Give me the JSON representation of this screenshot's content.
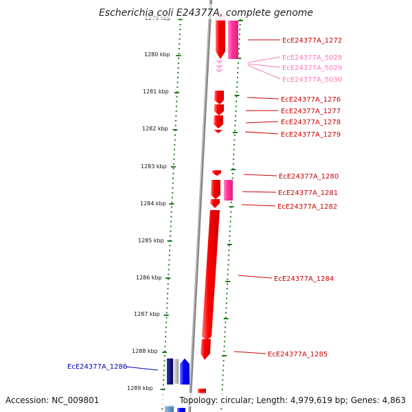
{
  "header": {
    "title": "Escherichia coli E24377A, complete genome"
  },
  "footer": {
    "accession": "Accession: NC_009801",
    "topology": "Topology: circular; Length: 4,979,619 bp; Genes: 4,863"
  },
  "colors": {
    "forward_gene": "#ff0000",
    "pseudo_gene": "#ff3399",
    "rna_gene": "#ff99cc",
    "reverse_gene": "#0000ff",
    "reverse_dark": "#000066",
    "backbone": "#888888",
    "tick": "#1a7a1a",
    "label_red": "#cc0000",
    "label_pink": "#ff77bb",
    "label_blue": "#0000aa"
  },
  "scale": {
    "unit": "kbp",
    "ticks": [
      {
        "value": 1279,
        "label": "1279 kbp"
      },
      {
        "value": 1280,
        "label": "1280 kbp"
      },
      {
        "value": 1281,
        "label": "1281 kbp"
      },
      {
        "value": 1282,
        "label": "1282 kbp"
      },
      {
        "value": 1283,
        "label": "1283 kbp"
      },
      {
        "value": 1284,
        "label": "1284 kbp"
      },
      {
        "value": 1285,
        "label": "1285 kbp"
      },
      {
        "value": 1286,
        "label": "1286 kbp"
      },
      {
        "value": 1287,
        "label": "1287 kbp"
      },
      {
        "value": 1288,
        "label": "1288 kbp"
      },
      {
        "value": 1289,
        "label": "1289 kbp"
      }
    ]
  },
  "genes": [
    {
      "label": "EcE24377A_1272",
      "kind": "forward"
    },
    {
      "label": "EcE24377A_5028",
      "kind": "rna"
    },
    {
      "label": "EcE24377A_5029",
      "kind": "rna"
    },
    {
      "label": "EcE24377A_5030",
      "kind": "rna"
    },
    {
      "label": "EcE24377A_1276",
      "kind": "forward"
    },
    {
      "label": "EcE24377A_1277",
      "kind": "forward"
    },
    {
      "label": "EcE24377A_1278",
      "kind": "forward"
    },
    {
      "label": "EcE24377A_1279",
      "kind": "forward"
    },
    {
      "label": "EcE24377A_1280",
      "kind": "forward"
    },
    {
      "label": "EcE24377A_1281",
      "kind": "forward"
    },
    {
      "label": "EcE24377A_1282",
      "kind": "forward"
    },
    {
      "label": "EcE24377A_1284",
      "kind": "forward"
    },
    {
      "label": "EcE24377A_1285",
      "kind": "forward"
    },
    {
      "label": "EcE24377A_1286",
      "kind": "reverse"
    }
  ]
}
